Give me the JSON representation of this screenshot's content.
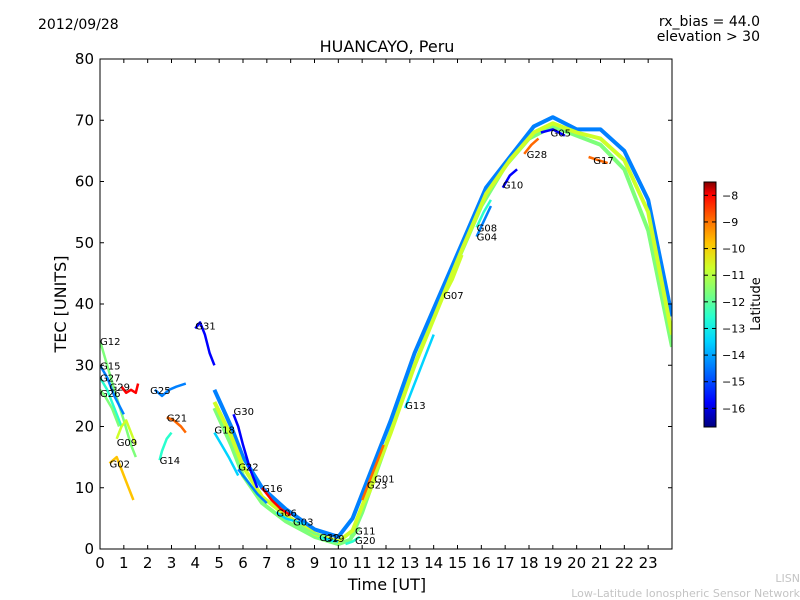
{
  "header": {
    "date": "2012/09/28",
    "rx_bias": "rx_bias = 44.0",
    "elevation": "elevation > 30"
  },
  "footer": {
    "line1": "LISN",
    "line2": "Low-Latitude Ionospheric Sensor Network"
  },
  "chart_data": {
    "type": "line",
    "title": "HUANCAYO, Peru",
    "xlabel": "Time [UT]",
    "ylabel": "TEC [UNITS]",
    "xlim": [
      0,
      24
    ],
    "ylim": [
      0,
      80
    ],
    "xticks": [
      0,
      1,
      2,
      3,
      4,
      5,
      6,
      7,
      8,
      9,
      10,
      11,
      12,
      13,
      14,
      15,
      16,
      17,
      18,
      19,
      20,
      21,
      22,
      23
    ],
    "yticks": [
      0,
      10,
      20,
      30,
      40,
      50,
      60,
      70,
      80
    ],
    "colorbar": {
      "label": "Latitude",
      "range": [
        -16.7,
        -7.5
      ],
      "ticks": [
        -8,
        -9,
        -10,
        -11,
        -12,
        -13,
        -14,
        -15,
        -16
      ],
      "colors": [
        "#00007f",
        "#0000ff",
        "#0080ff",
        "#00d4ff",
        "#29ffce",
        "#7dff7a",
        "#ceff29",
        "#ffc400",
        "#ff6800",
        "#ff0000",
        "#7f0000"
      ]
    },
    "envelope_series": [
      {
        "name": "day-lower",
        "lat": -12.5,
        "points": [
          [
            4.8,
            23
          ],
          [
            5.5,
            17
          ],
          [
            6.0,
            12
          ],
          [
            6.8,
            7.5
          ],
          [
            7.8,
            4.5
          ],
          [
            9.0,
            2
          ],
          [
            10.0,
            0.8
          ],
          [
            10.5,
            1.5
          ],
          [
            11.0,
            6
          ],
          [
            12.0,
            17
          ],
          [
            13.0,
            28
          ],
          [
            14.0,
            38
          ],
          [
            15.0,
            47
          ],
          [
            16.0,
            56
          ],
          [
            17.0,
            62.5
          ],
          [
            18.0,
            67
          ],
          [
            19.0,
            69
          ],
          [
            20.0,
            67.5
          ],
          [
            21.0,
            66
          ],
          [
            22.0,
            62
          ],
          [
            23.0,
            52
          ],
          [
            24.0,
            33
          ]
        ]
      },
      {
        "name": "day-upper",
        "lat": -14.5,
        "points": [
          [
            4.8,
            26
          ],
          [
            5.5,
            20
          ],
          [
            6.0,
            15
          ],
          [
            6.8,
            10
          ],
          [
            7.8,
            6.5
          ],
          [
            9.0,
            3.2
          ],
          [
            10.0,
            2
          ],
          [
            10.6,
            5
          ],
          [
            11.2,
            11
          ],
          [
            12.2,
            21
          ],
          [
            13.2,
            32
          ],
          [
            14.2,
            41
          ],
          [
            15.2,
            50
          ],
          [
            16.2,
            59
          ],
          [
            17.2,
            64
          ],
          [
            18.2,
            69
          ],
          [
            19.0,
            70.5
          ],
          [
            20.0,
            68.5
          ],
          [
            21.0,
            68.5
          ],
          [
            22.0,
            65
          ],
          [
            23.0,
            57
          ],
          [
            24.0,
            38
          ]
        ]
      },
      {
        "name": "day-mid",
        "lat": -11.5,
        "points": [
          [
            4.8,
            24
          ],
          [
            5.5,
            18.5
          ],
          [
            6.0,
            13.5
          ],
          [
            6.8,
            8.5
          ],
          [
            7.8,
            5.5
          ],
          [
            9.0,
            2.5
          ],
          [
            10.0,
            1.2
          ],
          [
            10.6,
            3
          ],
          [
            11.2,
            9
          ],
          [
            12.2,
            19
          ],
          [
            13.2,
            30
          ],
          [
            14.2,
            39.5
          ],
          [
            15.2,
            49
          ],
          [
            16.2,
            58
          ],
          [
            17.2,
            63.5
          ],
          [
            18.2,
            68
          ],
          [
            19.0,
            69.5
          ],
          [
            20.0,
            68
          ],
          [
            21.0,
            67
          ],
          [
            22.0,
            63.5
          ],
          [
            23.0,
            55
          ],
          [
            24.0,
            35
          ]
        ]
      }
    ],
    "series": [
      {
        "name": "G12",
        "lat": -12.0,
        "label_at": [
          0.0,
          34
        ],
        "points": [
          [
            0.0,
            34
          ],
          [
            0.3,
            30
          ],
          [
            0.6,
            26
          ],
          [
            1.0,
            21
          ],
          [
            1.3,
            17
          ],
          [
            1.5,
            15
          ]
        ]
      },
      {
        "name": "G15",
        "lat": -15.0,
        "label_at": [
          0.0,
          30
        ],
        "points": [
          [
            0.0,
            30
          ],
          [
            0.3,
            28
          ],
          [
            0.6,
            25
          ],
          [
            1.0,
            22
          ]
        ]
      },
      {
        "name": "G27",
        "lat": -13.0,
        "label_at": [
          0.0,
          28
        ],
        "points": [
          [
            0.0,
            28
          ],
          [
            0.3,
            26
          ],
          [
            0.6,
            23
          ],
          [
            0.9,
            20
          ]
        ]
      },
      {
        "name": "G26",
        "lat": -12.0,
        "label_at": [
          0.0,
          25.5
        ],
        "points": [
          [
            0.0,
            26
          ],
          [
            0.2,
            25
          ],
          [
            0.5,
            23
          ],
          [
            0.8,
            20
          ]
        ]
      },
      {
        "name": "G29",
        "lat": -8.5,
        "label_at": [
          0.4,
          26.5
        ],
        "points": [
          [
            0.9,
            26.5
          ],
          [
            1.1,
            25.5
          ],
          [
            1.3,
            26
          ],
          [
            1.5,
            25.5
          ],
          [
            1.6,
            27
          ]
        ]
      },
      {
        "name": "G09",
        "lat": -11.0,
        "label_at": [
          0.7,
          17.5
        ],
        "points": [
          [
            0.7,
            18
          ],
          [
            0.9,
            20
          ],
          [
            1.1,
            21
          ],
          [
            1.3,
            19
          ],
          [
            1.5,
            17
          ]
        ]
      },
      {
        "name": "G02",
        "lat": -10.0,
        "label_at": [
          0.4,
          14
        ],
        "points": [
          [
            0.4,
            14
          ],
          [
            0.7,
            15
          ],
          [
            1.0,
            12
          ],
          [
            1.2,
            10
          ],
          [
            1.4,
            8
          ]
        ]
      },
      {
        "name": "G25",
        "lat": -14.5,
        "label_at": [
          2.1,
          26
        ],
        "points": [
          [
            2.3,
            26
          ],
          [
            2.6,
            25
          ],
          [
            2.9,
            26
          ],
          [
            3.2,
            26.5
          ],
          [
            3.6,
            27
          ]
        ]
      },
      {
        "name": "G21",
        "lat": -9.0,
        "label_at": [
          2.8,
          21.5
        ],
        "points": [
          [
            2.8,
            21.5
          ],
          [
            3.1,
            21
          ],
          [
            3.4,
            20
          ],
          [
            3.6,
            19
          ]
        ]
      },
      {
        "name": "G14",
        "lat": -13.0,
        "label_at": [
          2.5,
          14.5
        ],
        "points": [
          [
            2.5,
            14.5
          ],
          [
            2.6,
            16
          ],
          [
            2.8,
            18
          ],
          [
            3.0,
            19
          ]
        ]
      },
      {
        "name": "G31",
        "lat": -15.5,
        "label_at": [
          4.0,
          36.5
        ],
        "points": [
          [
            4.0,
            36
          ],
          [
            4.2,
            37
          ],
          [
            4.4,
            35
          ],
          [
            4.6,
            32
          ],
          [
            4.8,
            30
          ]
        ]
      },
      {
        "name": "G30",
        "lat": -16.0,
        "label_at": [
          5.6,
          22.5
        ],
        "points": [
          [
            5.6,
            22
          ],
          [
            5.8,
            20
          ],
          [
            6.0,
            17
          ],
          [
            6.3,
            13
          ],
          [
            6.6,
            10
          ]
        ]
      },
      {
        "name": "G18",
        "lat": -13.5,
        "label_at": [
          4.8,
          19.5
        ],
        "points": [
          [
            4.8,
            19
          ],
          [
            5.1,
            17
          ],
          [
            5.4,
            15
          ],
          [
            5.8,
            12
          ]
        ]
      },
      {
        "name": "G22",
        "lat": -14.5,
        "label_at": [
          5.8,
          13.5
        ],
        "points": [
          [
            5.8,
            13
          ],
          [
            6.2,
            11
          ],
          [
            6.6,
            9
          ],
          [
            7.0,
            7.5
          ]
        ]
      },
      {
        "name": "G16",
        "lat": -8.5,
        "label_at": [
          6.8,
          10
        ],
        "points": [
          [
            6.8,
            10
          ],
          [
            7.2,
            8
          ],
          [
            7.6,
            6.5
          ],
          [
            8.0,
            5.5
          ]
        ]
      },
      {
        "name": "G06",
        "lat": -13.5,
        "label_at": [
          7.4,
          6
        ],
        "points": [
          [
            7.4,
            6
          ],
          [
            7.8,
            5
          ],
          [
            8.2,
            4.5
          ],
          [
            8.6,
            4
          ]
        ]
      },
      {
        "name": "G03",
        "lat": -12.0,
        "label_at": [
          8.1,
          4.5
        ],
        "points": [
          [
            8.1,
            4.5
          ],
          [
            8.5,
            3.5
          ],
          [
            9.0,
            2.5
          ],
          [
            9.5,
            2
          ]
        ]
      },
      {
        "name": "G32",
        "lat": -13.0,
        "label_at": [
          9.2,
          2
        ],
        "points": [
          [
            9.2,
            2
          ],
          [
            9.5,
            1.5
          ],
          [
            9.8,
            1.2
          ]
        ]
      },
      {
        "name": "G19",
        "lat": -14.0,
        "label_at": [
          9.4,
          1.8
        ],
        "points": [
          [
            9.4,
            1.8
          ],
          [
            9.7,
            1.4
          ],
          [
            10.0,
            1.2
          ]
        ]
      },
      {
        "name": "G11",
        "lat": -12.5,
        "label_at": [
          10.7,
          3
        ],
        "points": [
          [
            10.3,
            1
          ],
          [
            10.6,
            2
          ],
          [
            10.9,
            3.5
          ]
        ]
      },
      {
        "name": "G20",
        "lat": -13.0,
        "label_at": [
          10.7,
          1.5
        ],
        "points": [
          [
            10.3,
            0.8
          ],
          [
            10.6,
            1.2
          ],
          [
            10.9,
            2
          ]
        ]
      },
      {
        "name": "G01",
        "lat": -9.0,
        "label_at": [
          11.5,
          11.5
        ],
        "points": [
          [
            11.0,
            8
          ],
          [
            11.3,
            11
          ],
          [
            11.6,
            14
          ],
          [
            11.9,
            17
          ]
        ]
      },
      {
        "name": "G23",
        "lat": -11.0,
        "label_at": [
          11.2,
          10.5
        ],
        "points": [
          [
            11.0,
            7
          ],
          [
            11.3,
            9
          ],
          [
            11.6,
            12
          ]
        ]
      },
      {
        "name": "G13",
        "lat": -14.0,
        "label_at": [
          12.8,
          23.5
        ],
        "points": [
          [
            12.8,
            23
          ],
          [
            13.2,
            27
          ],
          [
            13.6,
            31
          ],
          [
            14.0,
            35
          ]
        ]
      },
      {
        "name": "G07",
        "lat": -11.0,
        "label_at": [
          14.4,
          41.5
        ],
        "points": [
          [
            14.4,
            41
          ],
          [
            14.8,
            44
          ],
          [
            15.2,
            48
          ]
        ]
      },
      {
        "name": "G08",
        "lat": -13.0,
        "label_at": [
          15.8,
          52.5
        ],
        "points": [
          [
            15.8,
            52.5
          ],
          [
            16.1,
            55
          ],
          [
            16.4,
            57
          ]
        ]
      },
      {
        "name": "G04",
        "lat": -15.0,
        "label_at": [
          15.8,
          51
        ],
        "points": [
          [
            15.8,
            51
          ],
          [
            16.1,
            53.5
          ],
          [
            16.4,
            56
          ]
        ]
      },
      {
        "name": "G10",
        "lat": -16.0,
        "label_at": [
          16.9,
          59.5
        ],
        "points": [
          [
            16.9,
            59
          ],
          [
            17.2,
            61
          ],
          [
            17.5,
            62
          ]
        ]
      },
      {
        "name": "G28",
        "lat": -9.0,
        "label_at": [
          17.9,
          64.5
        ],
        "points": [
          [
            17.8,
            64.5
          ],
          [
            18.1,
            66
          ],
          [
            18.4,
            67
          ]
        ]
      },
      {
        "name": "G05",
        "lat": -16.0,
        "label_at": [
          18.9,
          68
        ],
        "points": [
          [
            18.5,
            68
          ],
          [
            19.0,
            68.5
          ],
          [
            19.5,
            67.5
          ]
        ]
      },
      {
        "name": "G17",
        "lat": -9.5,
        "label_at": [
          20.7,
          63.5
        ],
        "points": [
          [
            20.5,
            64
          ],
          [
            20.9,
            63.5
          ],
          [
            21.3,
            63
          ]
        ]
      }
    ]
  }
}
